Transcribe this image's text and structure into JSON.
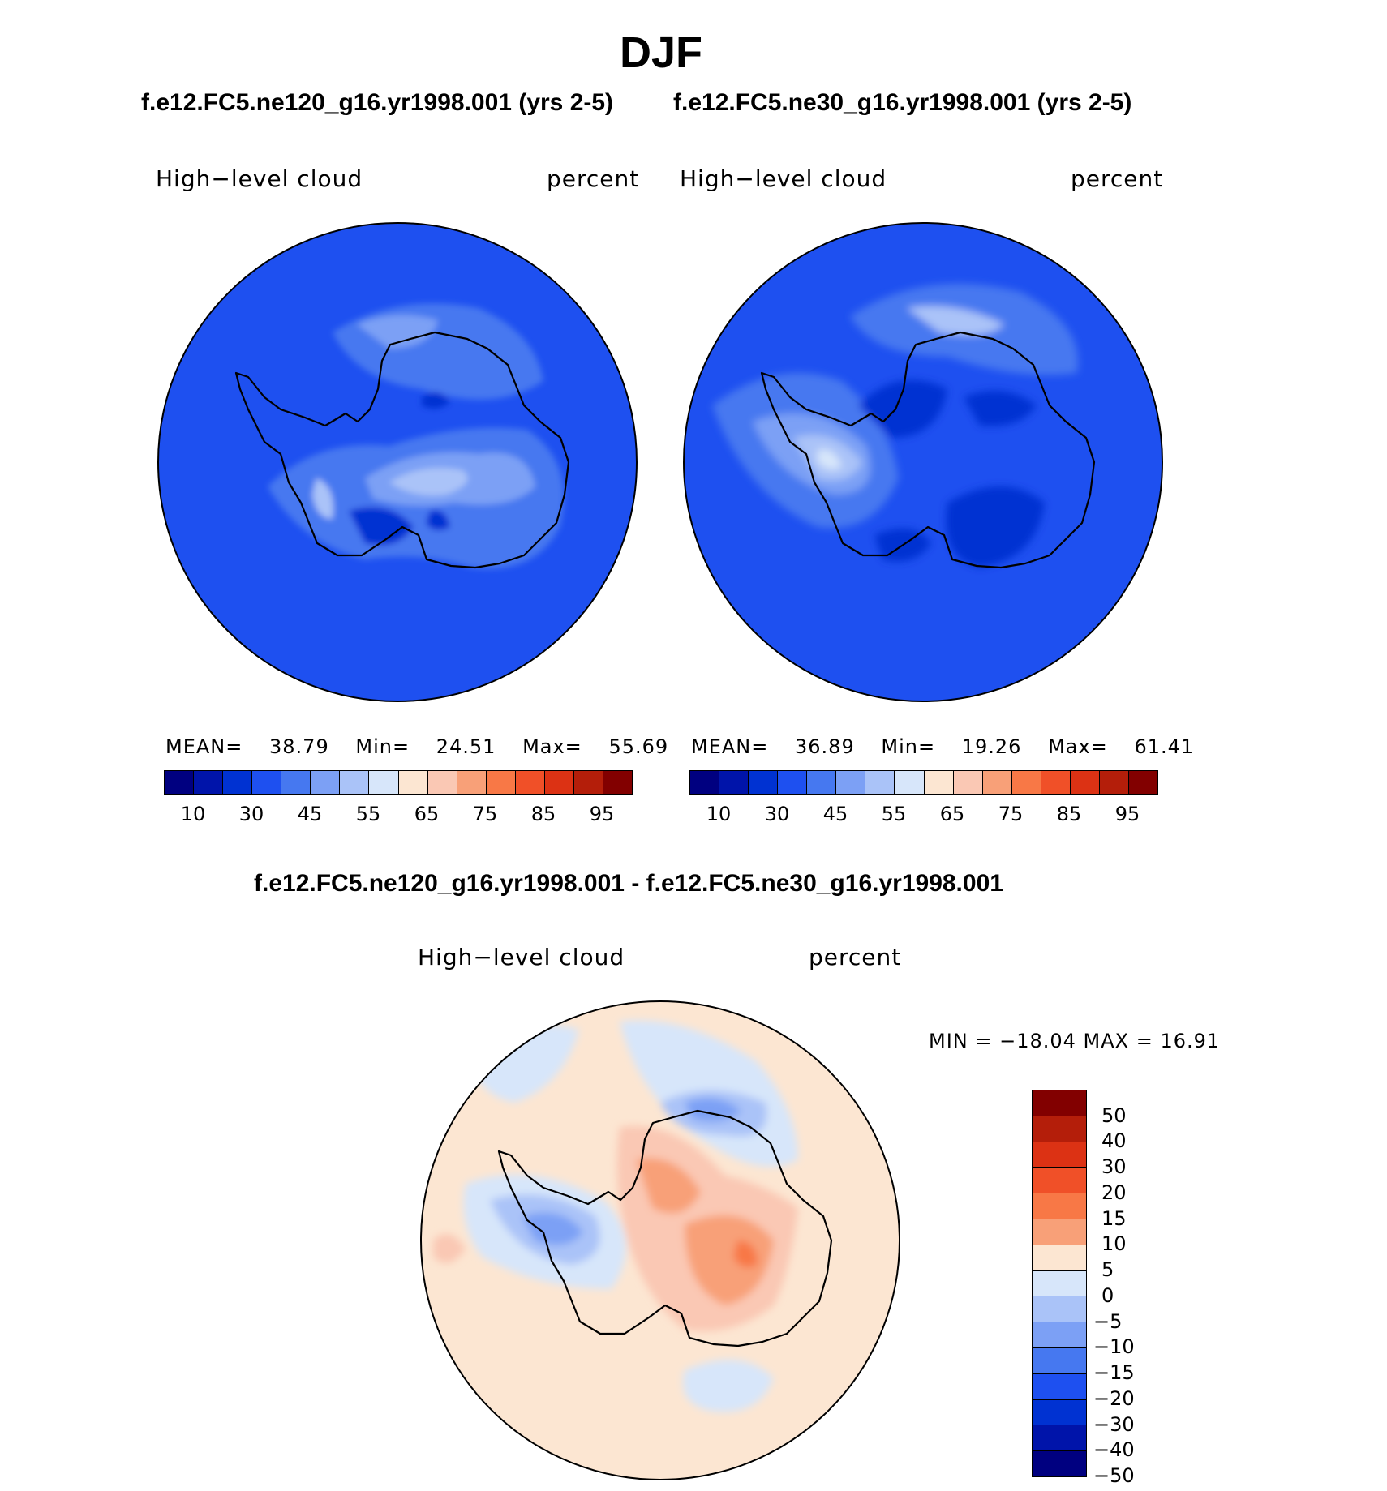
{
  "title": "DJF",
  "top_panels": [
    {
      "case_title": "f.e12.FC5.ne120_g16.yr1998.001 (yrs 2-5)",
      "variable": "High−level cloud",
      "units": "percent",
      "stats": {
        "mean_label": "MEAN=",
        "mean": "38.79",
        "min_label": "Min=",
        "min": "24.51",
        "max_label": "Max=",
        "max": "55.69"
      }
    },
    {
      "case_title": "f.e12.FC5.ne30_g16.yr1998.001 (yrs 2-5)",
      "variable": "High−level cloud",
      "units": "percent",
      "stats": {
        "mean_label": "MEAN=",
        "mean": "36.89",
        "min_label": "Min=",
        "min": "19.26",
        "max_label": "Max=",
        "max": "61.41"
      }
    }
  ],
  "diff_panel": {
    "title": "f.e12.FC5.ne120_g16.yr1998.001 - f.e12.FC5.ne30_g16.yr1998.001",
    "variable": "High−level cloud",
    "units": "percent",
    "minmax": "MIN = −18.04 MAX =   16.91"
  },
  "colorbar_abs": {
    "colors": [
      "#000080",
      "#0014aa",
      "#0032d2",
      "#1e50f0",
      "#4678f0",
      "#7ca0f5",
      "#aac3f8",
      "#d7e6fa",
      "#fce6d2",
      "#fac8b4",
      "#f8a078",
      "#f87846",
      "#f05028",
      "#dc3214",
      "#b41e0a",
      "#820000"
    ],
    "tick_labels": [
      "10",
      "30",
      "45",
      "55",
      "65",
      "75",
      "85",
      "95"
    ]
  },
  "colorbar_diff": {
    "colors_top_to_bottom": [
      "#820000",
      "#b41e0a",
      "#dc3214",
      "#f05028",
      "#f87846",
      "#f8a078",
      "#fce6d2",
      "#d7e6fa",
      "#aac3f8",
      "#7ca0f5",
      "#4678f0",
      "#1e50f0",
      "#0032d2",
      "#0014aa",
      "#000080"
    ],
    "tick_labels": [
      "50",
      "40",
      "30",
      "20",
      "15",
      "10",
      "5",
      "0",
      "−5",
      "−10",
      "−15",
      "−20",
      "−30",
      "−40",
      "−50"
    ]
  },
  "chart_data": [
    {
      "type": "heatmap",
      "projection": "south polar stereographic",
      "title": "f.e12.FC5.ne120_g16.yr1998.001 (yrs 2-5)",
      "variable": "High−level cloud",
      "units": "percent",
      "mean": 38.79,
      "min": 24.51,
      "max": 55.69,
      "contour_levels": [
        5,
        10,
        20,
        30,
        40,
        45,
        50,
        55,
        60,
        65,
        70,
        75,
        80,
        85,
        90,
        95
      ]
    },
    {
      "type": "heatmap",
      "projection": "south polar stereographic",
      "title": "f.e12.FC5.ne30_g16.yr1998.001 (yrs 2-5)",
      "variable": "High−level cloud",
      "units": "percent",
      "mean": 36.89,
      "min": 19.26,
      "max": 61.41,
      "contour_levels": [
        5,
        10,
        20,
        30,
        40,
        45,
        50,
        55,
        60,
        65,
        70,
        75,
        80,
        85,
        90,
        95
      ]
    },
    {
      "type": "heatmap",
      "projection": "south polar stereographic",
      "title": "f.e12.FC5.ne120_g16.yr1998.001 - f.e12.FC5.ne30_g16.yr1998.001",
      "variable": "High−level cloud",
      "units": "percent",
      "min": -18.04,
      "max": 16.91,
      "contour_levels": [
        -50,
        -40,
        -30,
        -20,
        -15,
        -10,
        -5,
        0,
        5,
        10,
        15,
        20,
        30,
        40,
        50
      ]
    }
  ]
}
